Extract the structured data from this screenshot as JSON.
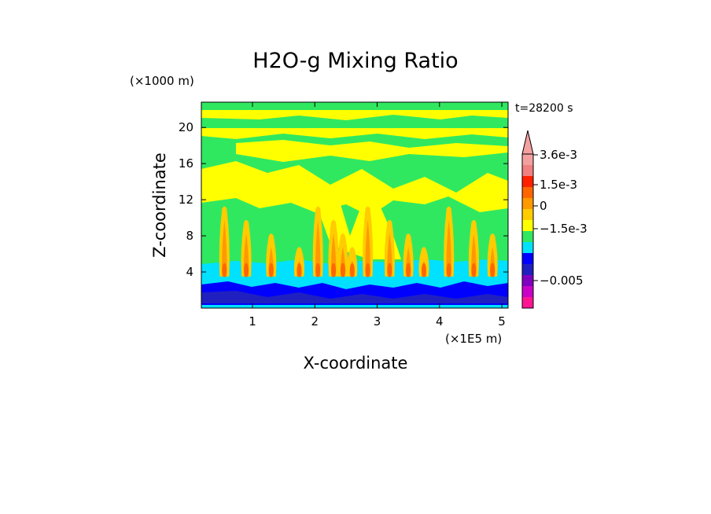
{
  "chart_data": {
    "type": "heatmap",
    "title": "H2O-g Mixing Ratio",
    "time_label": "t=28200 s",
    "xlabel": "X-coordinate",
    "ylabel": "Z-coordinate",
    "x_unit": "(×1E5 m)",
    "y_unit": "(×1000 m)",
    "xlim": [
      0.18,
      5.1
    ],
    "ylim": [
      0,
      22.8
    ],
    "x_ticks": [
      1,
      2,
      3,
      4,
      5
    ],
    "y_ticks": [
      4,
      8,
      12,
      16,
      20
    ],
    "x_tick_labels": [
      "1",
      "2",
      "3",
      "4",
      "5"
    ],
    "y_tick_labels": [
      "4",
      "8",
      "12",
      "16",
      "20"
    ],
    "colorbar": {
      "labels": [
        "3.6e-3",
        "1.5e-3",
        "0",
        "−1.5e-3",
        "−0.005"
      ],
      "colors": [
        "#ff1493",
        "#c800c8",
        "#8000c0",
        "#2020c0",
        "#0000ff",
        "#00e0ff",
        "#30e860",
        "#ffff00",
        "#ffcc00",
        "#ff9900",
        "#ff6600",
        "#ff2000",
        "#f08080",
        "#f4a0a0"
      ]
    },
    "layers": [
      {
        "name": "dark-blue boundary layer",
        "z_range": [
          0.5,
          2.8
        ],
        "color": "#0000ff"
      },
      {
        "name": "cyan layer",
        "z_range": [
          0,
          5.5
        ],
        "color": "#00e0ff"
      },
      {
        "name": "green mid layer",
        "z_range": [
          5.5,
          22.8
        ],
        "color": "#30e860"
      },
      {
        "name": "yellow upper bands",
        "z_range": [
          10,
          22
        ],
        "color": "#ffff00"
      }
    ],
    "plumes_x": [
      0.55,
      0.9,
      1.3,
      1.75,
      2.05,
      2.3,
      2.45,
      2.6,
      2.85,
      3.2,
      3.5,
      3.75,
      4.15,
      4.55,
      4.85
    ]
  }
}
